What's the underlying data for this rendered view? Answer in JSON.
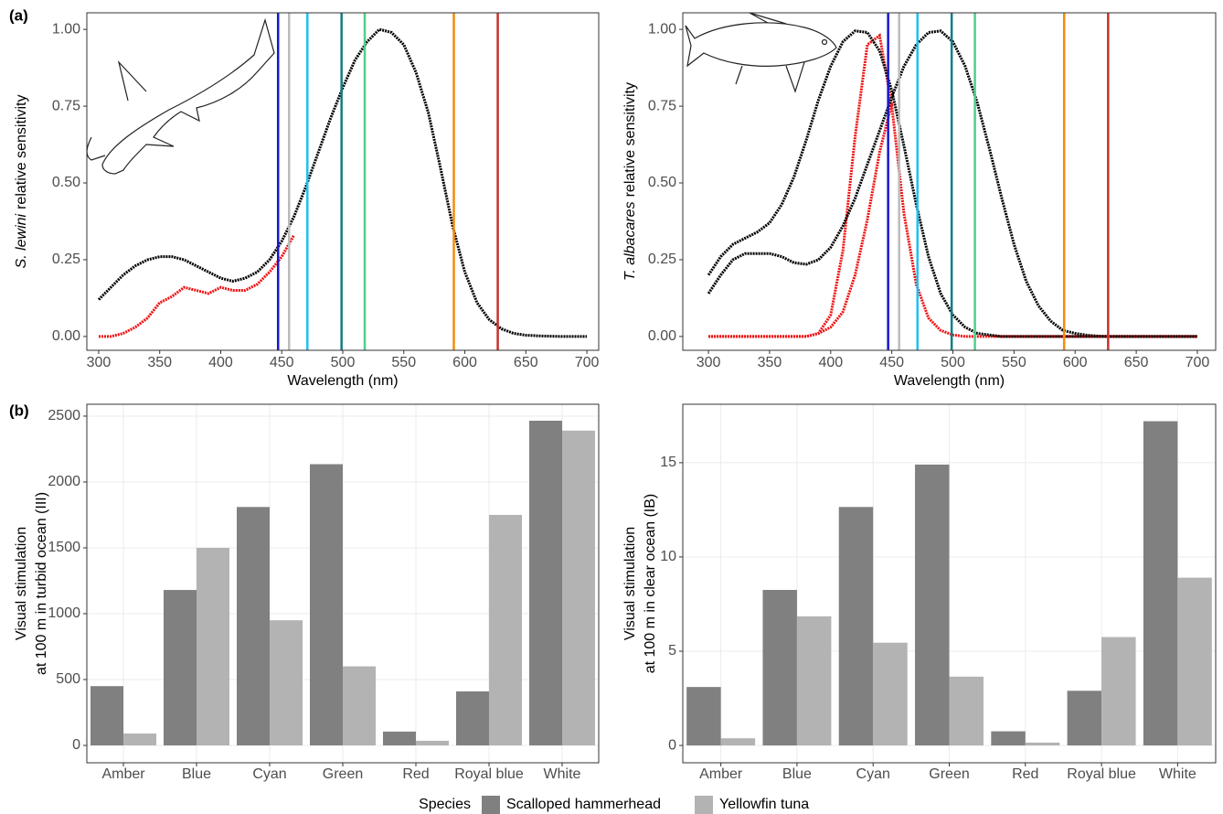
{
  "labels": {
    "a": "(a)",
    "b": "(b)"
  },
  "chart_data": [
    {
      "type": "line",
      "xlabel": "Wavelength (nm)",
      "ylabel_italic": "S. lewini",
      "ylabel": "relative sensitivity",
      "xlim": [
        290.3,
        709.7
      ],
      "ylim": [
        -0.045,
        1.054
      ],
      "xticks": [
        300,
        350,
        400,
        450,
        500,
        550,
        600,
        650,
        700
      ],
      "yticks": [
        {
          "value": 0,
          "label": "0.00"
        },
        {
          "value": 0.25,
          "label": "0.25"
        },
        {
          "value": 0.5,
          "label": "0.50"
        },
        {
          "value": 0.75,
          "label": "0.75"
        },
        {
          "value": 1,
          "label": "1.00"
        }
      ],
      "grid": false,
      "x": [
        300,
        310,
        320,
        330,
        340,
        350,
        360,
        370,
        380,
        390,
        400,
        410,
        420,
        430,
        440,
        450,
        460,
        470,
        480,
        490,
        500,
        510,
        520,
        530,
        540,
        550,
        560,
        570,
        580,
        590,
        600,
        610,
        620,
        630,
        640,
        650,
        660,
        670,
        680,
        690,
        700
      ],
      "series": [
        {
          "color": "#000000",
          "values": [
            0.12,
            0.16,
            0.2,
            0.23,
            0.25,
            0.26,
            0.26,
            0.25,
            0.23,
            0.21,
            0.19,
            0.18,
            0.19,
            0.21,
            0.25,
            0.31,
            0.39,
            0.49,
            0.6,
            0.71,
            0.81,
            0.9,
            0.96,
            1.0,
            0.99,
            0.95,
            0.86,
            0.73,
            0.55,
            0.36,
            0.21,
            0.11,
            0.055,
            0.025,
            0.01,
            0.004,
            0.002,
            0.001,
            0,
            0,
            0
          ]
        },
        {
          "color": "#ee1111",
          "values": [
            0,
            0,
            0.01,
            0.03,
            0.06,
            0.11,
            0.13,
            0.16,
            0.15,
            0.14,
            0.16,
            0.15,
            0.15,
            0.17,
            0.21,
            0.26,
            0.33,
            null,
            null,
            null,
            null,
            null,
            null,
            null,
            null,
            null,
            null,
            null,
            null,
            null,
            null,
            null,
            null,
            null,
            null,
            null,
            null,
            null,
            null,
            null,
            null
          ]
        }
      ],
      "vlines": [
        {
          "value": 447,
          "color": "#1515d0"
        },
        {
          "value": 456,
          "color": "#bbbbbb"
        },
        {
          "value": 471,
          "color": "#1ec0f0"
        },
        {
          "value": 499,
          "color": "#0e7d86"
        },
        {
          "value": 518,
          "color": "#4ecf8c"
        },
        {
          "value": 591,
          "color": "#f28c0e"
        },
        {
          "value": 627,
          "color": "#c8312b"
        }
      ]
    },
    {
      "type": "line",
      "xlabel": "Wavelength (nm)",
      "ylabel_italic": "T. albacares",
      "ylabel": "relative sensitivity",
      "xlim": [
        279,
        715
      ],
      "ylim": [
        -0.045,
        1.054
      ],
      "xticks": [
        300,
        350,
        400,
        450,
        500,
        550,
        600,
        650,
        700
      ],
      "yticks": [
        {
          "value": 0,
          "label": "0.00"
        },
        {
          "value": 0.25,
          "label": "0.25"
        },
        {
          "value": 0.5,
          "label": "0.50"
        },
        {
          "value": 0.75,
          "label": "0.75"
        },
        {
          "value": 1,
          "label": "1.00"
        }
      ],
      "grid": false,
      "x": [
        300,
        310,
        320,
        330,
        340,
        350,
        360,
        370,
        380,
        390,
        400,
        410,
        420,
        430,
        440,
        450,
        460,
        470,
        480,
        490,
        500,
        510,
        520,
        530,
        540,
        550,
        560,
        570,
        580,
        590,
        600,
        610,
        620,
        630,
        640,
        650,
        660,
        670,
        680,
        690,
        700
      ],
      "series": [
        {
          "color": "#ee1111",
          "values": [
            0,
            0,
            0,
            0,
            0,
            0,
            0,
            0,
            0,
            0.01,
            0.07,
            0.28,
            0.65,
            0.95,
            0.98,
            0.75,
            0.4,
            0.17,
            0.06,
            0.02,
            0.005,
            0,
            0,
            0,
            0,
            0,
            0,
            0,
            0,
            0,
            0,
            0,
            0,
            0,
            0,
            0,
            0,
            0,
            0,
            0,
            0
          ]
        },
        {
          "color": "#ee1111",
          "values": [
            0,
            0,
            0,
            0,
            0,
            0,
            0,
            0,
            0,
            0.01,
            0.03,
            0.08,
            0.2,
            0.38,
            0.6,
            0.76,
            null,
            null,
            null,
            null,
            null,
            null,
            null,
            null,
            null,
            null,
            null,
            null,
            null,
            null,
            null,
            null,
            null,
            null,
            null,
            null,
            null,
            null,
            null,
            null,
            null
          ]
        },
        {
          "color": "#000000",
          "values": [
            0.2,
            0.26,
            0.3,
            0.32,
            0.34,
            0.37,
            0.43,
            0.52,
            0.64,
            0.77,
            0.88,
            0.96,
            0.995,
            0.99,
            0.93,
            0.8,
            0.62,
            0.43,
            0.26,
            0.14,
            0.07,
            0.03,
            0.01,
            0.005,
            0,
            0,
            0,
            0,
            0,
            0,
            0,
            0,
            0,
            0,
            0,
            0,
            0,
            0,
            0,
            0,
            0
          ]
        },
        {
          "color": "#000000",
          "values": [
            0.14,
            0.2,
            0.25,
            0.27,
            0.27,
            0.27,
            0.26,
            0.24,
            0.235,
            0.25,
            0.29,
            0.36,
            0.45,
            0.56,
            0.67,
            0.78,
            0.88,
            0.95,
            0.99,
            0.995,
            0.96,
            0.88,
            0.76,
            0.61,
            0.45,
            0.3,
            0.18,
            0.1,
            0.05,
            0.02,
            0.01,
            0.004,
            0.001,
            0,
            0,
            0,
            0,
            0,
            0,
            0,
            0
          ]
        }
      ],
      "vlines": [
        {
          "value": 447,
          "color": "#1515d0"
        },
        {
          "value": 456,
          "color": "#bbbbbb"
        },
        {
          "value": 471,
          "color": "#1ec0f0"
        },
        {
          "value": 499,
          "color": "#0e7d86"
        },
        {
          "value": 518,
          "color": "#4ecf8c"
        },
        {
          "value": 591,
          "color": "#f28c0e"
        },
        {
          "value": 627,
          "color": "#c8312b"
        }
      ]
    },
    {
      "type": "bar",
      "ylabel": [
        "Visual stimulation",
        "at 100 m in turbid ocean (III)"
      ],
      "ylim": [
        -132,
        2590
      ],
      "yticks": [
        0,
        500,
        1000,
        1500,
        2000,
        2500
      ],
      "grid": true,
      "legend_title": "Species",
      "categories": [
        "Amber",
        "Blue",
        "Cyan",
        "Green",
        "Red",
        "Royal blue",
        "White"
      ],
      "series": [
        {
          "name": "Scalloped hammerhead",
          "color": "#808080",
          "values": [
            450,
            1180,
            1810,
            2135,
            105,
            410,
            2465
          ]
        },
        {
          "name": "Yellowfin tuna",
          "color": "#b3b3b3",
          "values": [
            90,
            1500,
            950,
            600,
            35,
            1750,
            2390
          ]
        }
      ]
    },
    {
      "type": "bar",
      "ylabel": [
        "Visual stimulation",
        "at 100 m in clear ocean (IB)"
      ],
      "ylim": [
        -0.92,
        18.1
      ],
      "yticks": [
        0,
        5,
        10,
        15
      ],
      "grid": true,
      "categories": [
        "Amber",
        "Blue",
        "Cyan",
        "Green",
        "Red",
        "Royal blue",
        "White"
      ],
      "series": [
        {
          "name": "Scalloped hammerhead",
          "color": "#808080",
          "values": [
            3.1,
            8.25,
            12.65,
            14.9,
            0.75,
            2.9,
            17.2
          ]
        },
        {
          "name": "Yellowfin tuna",
          "color": "#b3b3b3",
          "values": [
            0.38,
            6.85,
            5.45,
            3.65,
            0.15,
            5.75,
            8.9
          ]
        }
      ]
    }
  ]
}
